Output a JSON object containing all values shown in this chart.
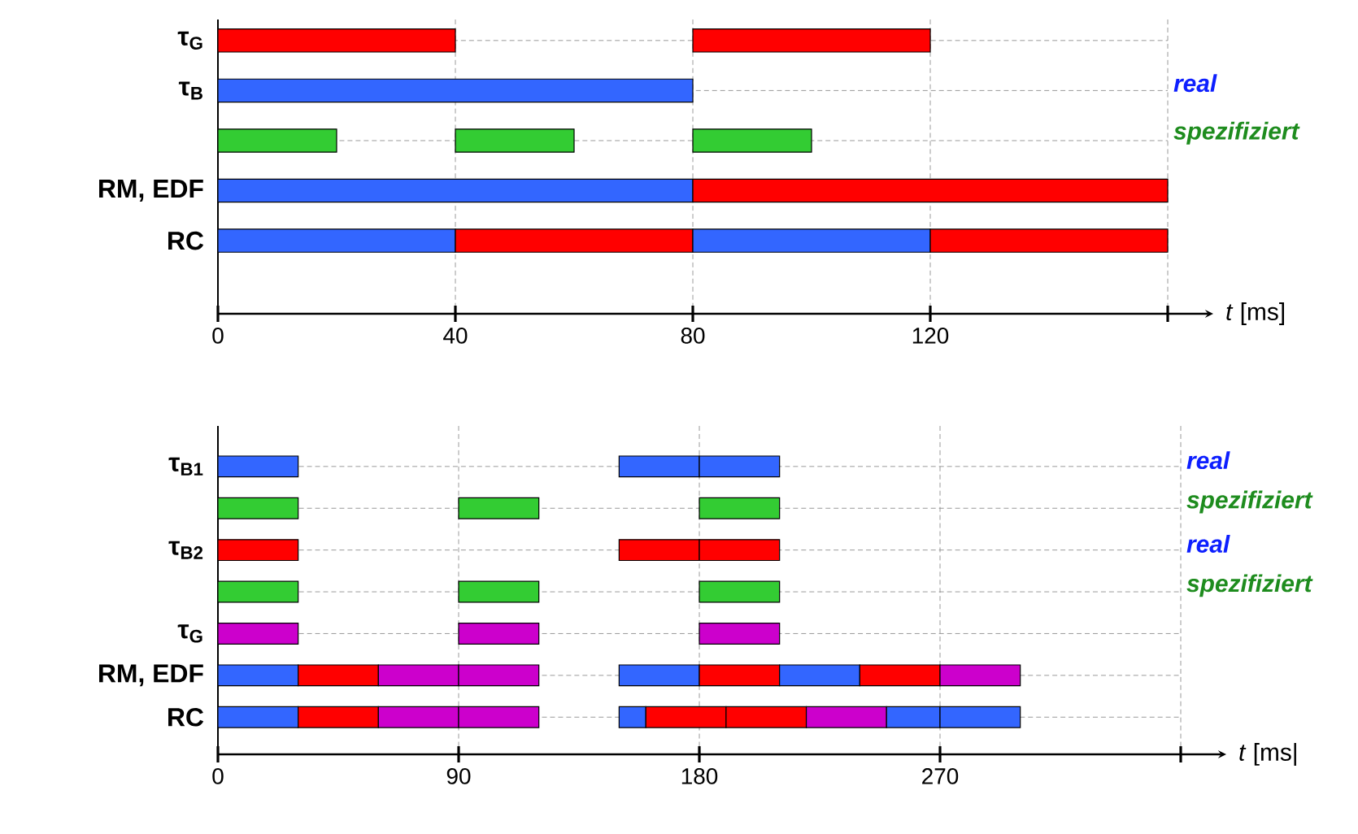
{
  "chart_data": [
    {
      "type": "bar",
      "orientation": "horizontal",
      "categories": [
        "τ$_{G}$",
        "τ$_{B}$",
        null,
        "RM, EDF",
        "RC"
      ],
      "xlim": [
        0,
        160
      ],
      "xticks": [
        0,
        40,
        80,
        120,
        {
          "value": 160,
          "label": null
        }
      ],
      "xlabel": "*t* [ms]",
      "grid": true,
      "annotations": [
        "real",
        "spezifiziert"
      ],
      "series": [
        {
          "base": [
            0,
            0,
            0,
            0,
            0
          ],
          "values": [
            40,
            80,
            20,
            80,
            40
          ],
          "colors": [
            "#ff0000",
            "#3366ff",
            "#33cc33",
            "#3366ff",
            "#3366ff"
          ]
        },
        {
          "base": [
            80,
            null,
            40,
            80,
            40
          ],
          "values": [
            40,
            null,
            20,
            80,
            40
          ],
          "colors": [
            "#ff0000",
            null,
            "#33cc33",
            "#ff0000",
            "#ff0000"
          ]
        },
        {
          "base": [
            null,
            null,
            80,
            null,
            80
          ],
          "values": [
            null,
            null,
            20,
            null,
            40
          ],
          "colors": [
            null,
            null,
            "#33cc33",
            null,
            "#3366ff"
          ]
        },
        {
          "base": [
            null,
            null,
            null,
            null,
            120
          ],
          "values": [
            null,
            null,
            null,
            null,
            40
          ],
          "colors": [
            null,
            null,
            null,
            null,
            "#ff0000"
          ]
        }
      ]
    },
    {
      "type": "bar",
      "orientation": "horizontal",
      "categories": [
        "τ$_{B1}$",
        null,
        "τ$_{B2}$",
        null,
        "τ$_{G}$",
        "RM, EDF",
        "RC"
      ],
      "xlim": [
        0,
        360
      ],
      "xticks": [
        0,
        90,
        180,
        270,
        {
          "value": 360,
          "label": null
        }
      ],
      "xlabel": "*t* [ms|",
      "grid": true,
      "annotations": [
        "real",
        "spezifiziert",
        "real",
        "spezifiziert"
      ],
      "series": [
        {
          "base": [
            0,
            0,
            0,
            0,
            0,
            0,
            0
          ],
          "values": [
            30,
            30,
            30,
            30,
            30,
            30,
            30
          ],
          "colors": [
            "#3366ff",
            "#33cc33",
            "#ff0000",
            "#33cc33",
            "#cc00cc",
            "#3366ff",
            "#3366ff"
          ]
        },
        {
          "base": [
            150,
            90,
            150,
            90,
            90,
            30,
            30
          ],
          "values": [
            30,
            30,
            30,
            30,
            30,
            30,
            30
          ],
          "colors": [
            "#3366ff",
            "#33cc33",
            "#ff0000",
            "#33cc33",
            "#cc00cc",
            "#ff0000",
            "#ff0000"
          ]
        },
        {
          "base": [
            180,
            180,
            180,
            180,
            180,
            60,
            60
          ],
          "values": [
            30,
            30,
            30,
            30,
            30,
            30,
            30
          ],
          "colors": [
            "#3366ff",
            "#33cc33",
            "#ff0000",
            "#33cc33",
            "#cc00cc",
            "#cc00cc",
            "#cc00cc"
          ]
        },
        {
          "base": [
            null,
            null,
            null,
            null,
            null,
            90,
            90
          ],
          "values": [
            null,
            null,
            null,
            null,
            null,
            30,
            30
          ],
          "colors": [
            null,
            null,
            null,
            null,
            null,
            "#cc00cc",
            "#cc00cc"
          ]
        },
        {
          "base": [
            null,
            null,
            null,
            null,
            null,
            150,
            150
          ],
          "values": [
            null,
            null,
            null,
            null,
            null,
            30,
            10
          ],
          "colors": [
            null,
            null,
            null,
            null,
            null,
            "#3366ff",
            "#3366ff"
          ]
        },
        {
          "base": [
            null,
            null,
            null,
            null,
            null,
            180,
            160
          ],
          "values": [
            null,
            null,
            null,
            null,
            null,
            30,
            30
          ],
          "colors": [
            null,
            null,
            null,
            null,
            null,
            "#ff0000",
            "#ff0000"
          ]
        },
        {
          "base": [
            null,
            null,
            null,
            null,
            null,
            210,
            190
          ],
          "values": [
            null,
            null,
            null,
            null,
            null,
            30,
            30
          ],
          "colors": [
            null,
            null,
            null,
            null,
            null,
            "#3366ff",
            "#ff0000"
          ]
        },
        {
          "base": [
            null,
            null,
            null,
            null,
            null,
            240,
            220
          ],
          "values": [
            null,
            null,
            null,
            null,
            null,
            30,
            30
          ],
          "colors": [
            null,
            null,
            null,
            null,
            null,
            "#ff0000",
            "#cc00cc"
          ]
        },
        {
          "base": [
            null,
            null,
            null,
            null,
            null,
            270,
            250
          ],
          "values": [
            null,
            null,
            null,
            null,
            null,
            30,
            20
          ],
          "colors": [
            null,
            null,
            null,
            null,
            null,
            "#cc00cc",
            "#3366ff"
          ]
        },
        {
          "base": [
            null,
            null,
            null,
            null,
            null,
            null,
            270
          ],
          "values": [
            null,
            null,
            null,
            null,
            null,
            null,
            30
          ],
          "colors": [
            null,
            null,
            null,
            null,
            null,
            null,
            "#3366ff"
          ]
        }
      ]
    }
  ]
}
